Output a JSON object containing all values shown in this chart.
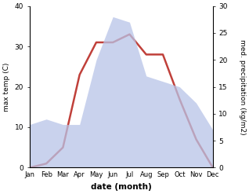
{
  "months": [
    "Jan",
    "Feb",
    "Mar",
    "Apr",
    "May",
    "Jun",
    "Jul",
    "Aug",
    "Sep",
    "Oct",
    "Nov",
    "Dec"
  ],
  "month_indices": [
    0,
    1,
    2,
    3,
    4,
    5,
    6,
    7,
    8,
    9,
    10,
    11
  ],
  "temperature": [
    0,
    1,
    5,
    23,
    31,
    31,
    33,
    28,
    28,
    17,
    7,
    0
  ],
  "precipitation": [
    8,
    9,
    8,
    8,
    20,
    28,
    27,
    17,
    16,
    15,
    12,
    7
  ],
  "temp_ylim": [
    0,
    40
  ],
  "precip_ylim": [
    0,
    30
  ],
  "temp_yticks": [
    0,
    10,
    20,
    30,
    40
  ],
  "precip_yticks": [
    0,
    5,
    10,
    15,
    20,
    25,
    30
  ],
  "line_color": "#c0403a",
  "fill_color": "#b8c4e8",
  "fill_alpha": 0.75,
  "xlabel": "date (month)",
  "ylabel_left": "max temp (C)",
  "ylabel_right": "med. precipitation (kg/m2)",
  "bg_color": "#ffffff",
  "line_width": 1.8,
  "figsize": [
    3.18,
    2.47
  ],
  "dpi": 100
}
